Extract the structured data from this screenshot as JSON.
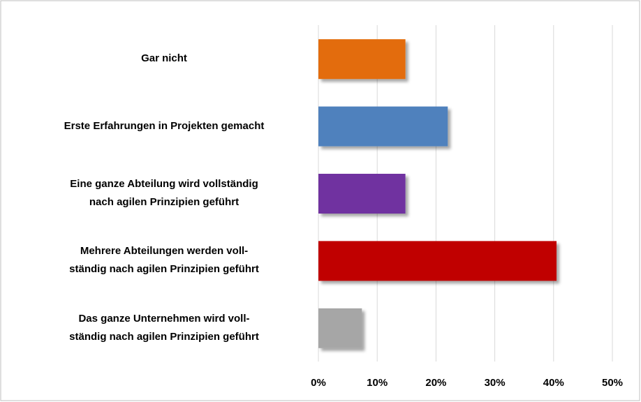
{
  "chart_data": {
    "type": "bar",
    "orientation": "horizontal",
    "categories": [
      "Gar nicht",
      "Erste Erfahrungen in Projekten gemacht",
      "Eine ganze Abteilung wird vollständig\nnach agilen Prinzipien geführt",
      "Mehrere Abteilungen werden voll-\nständig nach agilen Prinzipien geführt",
      "Das ganze Unternehmen wird voll-\nständig nach agilen Prinzipien geführt"
    ],
    "values": [
      14.8,
      22.0,
      14.8,
      40.5,
      7.4
    ],
    "colors": [
      "#e36c0a",
      "#4f81bd",
      "#7030a0",
      "#c00000",
      "#a6a6a6"
    ],
    "xlim": [
      0,
      50
    ],
    "xticks": [
      {
        "value": 0,
        "label": "0%"
      },
      {
        "value": 10,
        "label": "10%"
      },
      {
        "value": 20,
        "label": "20%"
      },
      {
        "value": 30,
        "label": "30%"
      },
      {
        "value": 40,
        "label": "40%"
      },
      {
        "value": 50,
        "label": "50%"
      }
    ],
    "grid": true
  }
}
